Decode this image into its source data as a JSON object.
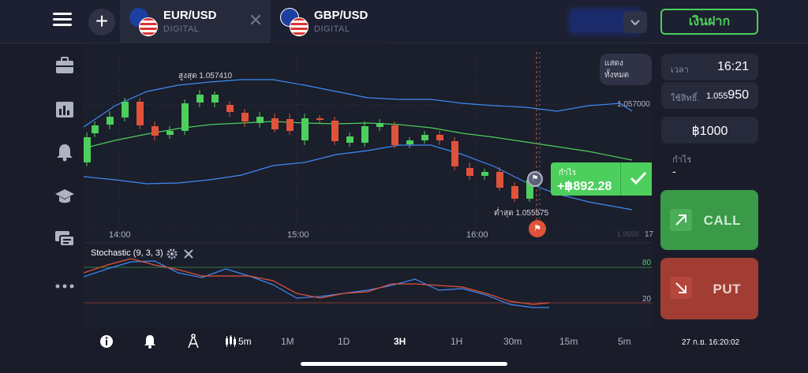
{
  "tabs": [
    {
      "name": "EUR/USD",
      "sub": "DIGITAL"
    },
    {
      "name": "GBP/USD",
      "sub": "DIGITAL"
    }
  ],
  "header": {
    "deposit_label": "เงินฝาก"
  },
  "chart": {
    "show_all_label": "แสดงทั้งหมด",
    "high_label": "สูงสุด 1.057410",
    "low_label": "ต่ำสุด 1.055575",
    "price_level": "1.057000",
    "time_ticks": [
      "14:00",
      "15:00",
      "16:00"
    ],
    "profit_label": "กำไร",
    "profit_value": "+฿892.28",
    "indicator_label": "Stochastic (9, 3, 3)",
    "osc_levels": [
      "80",
      "20"
    ],
    "axis_cut_left": "1.0550",
    "axis_cut_right": "17"
  },
  "panel": {
    "time_label": "เวลา",
    "time_value": "16:21",
    "invest_label": "ใช้สิทธิ์.",
    "invest_small": "1.055",
    "invest_big": "950",
    "amount": "฿1000",
    "profit_label": "กำไร",
    "profit_value": "-",
    "call_label": "CALL",
    "put_label": "PUT"
  },
  "bottom": {
    "candle_tf": "5m",
    "timeframes": [
      "1M",
      "1D",
      "3H",
      "1H",
      "30m",
      "15m",
      "5m"
    ],
    "active_timeframe": "3H",
    "datetime": "27 ก.ย. 16:20:02"
  },
  "colors": {
    "green": "#4ccf5c",
    "red": "#e0533a",
    "blue": "#3d8af7"
  }
}
